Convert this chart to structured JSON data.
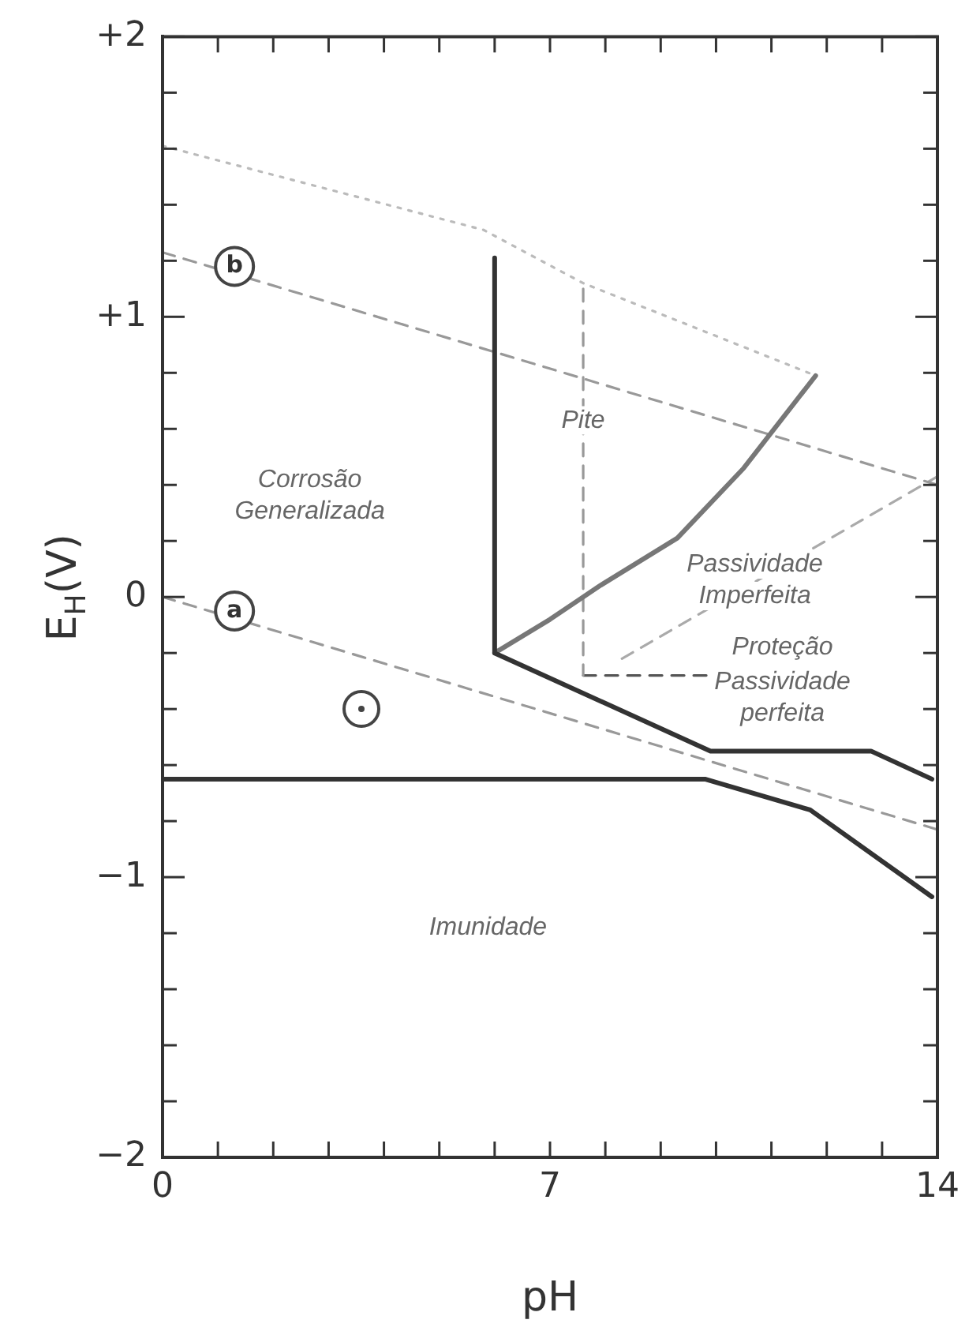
{
  "chart_data": {
    "type": "line",
    "xlabel": "pH",
    "ylabel": "E$_{H}$(V)",
    "xlim": [
      0,
      14
    ],
    "ylim": [
      -2,
      2
    ],
    "xticks": [
      0,
      {
        "value": 1,
        "label": null
      },
      {
        "value": 2,
        "label": null
      },
      {
        "value": 3,
        "label": null
      },
      {
        "value": 4,
        "label": null
      },
      {
        "value": 5,
        "label": null
      },
      {
        "value": 6,
        "label": null
      },
      7,
      {
        "value": 8,
        "label": null
      },
      {
        "value": 9,
        "label": null
      },
      {
        "value": 10,
        "label": null
      },
      {
        "value": 11,
        "label": null
      },
      {
        "value": 12,
        "label": null
      },
      {
        "value": 13,
        "label": null
      },
      14
    ],
    "yticks": [
      {
        "value": -2,
        "label": "−2"
      },
      {
        "value": -1.8,
        "label": null
      },
      {
        "value": -1.6,
        "label": null
      },
      {
        "value": -1.4,
        "label": null
      },
      {
        "value": -1.2,
        "label": null
      },
      {
        "value": -1,
        "label": "−1"
      },
      {
        "value": -0.8,
        "label": null
      },
      {
        "value": -0.6,
        "label": null
      },
      {
        "value": -0.4,
        "label": null
      },
      {
        "value": -0.2,
        "label": null
      },
      0,
      {
        "value": 0.2,
        "label": null
      },
      {
        "value": 0.4,
        "label": null
      },
      {
        "value": 0.6,
        "label": null
      },
      {
        "value": 0.8,
        "label": null
      },
      {
        "value": 1,
        "label": "+1"
      },
      {
        "value": 1.2,
        "label": null
      },
      {
        "value": 1.4,
        "label": null
      },
      {
        "value": 1.6,
        "label": null
      },
      {
        "value": 1.8,
        "label": null
      },
      {
        "value": 2,
        "label": "+2"
      }
    ],
    "grid": false,
    "legend": false,
    "marker": "none",
    "series": [
      {
        "x": [
          0,
          9.8,
          11.7,
          13.9
        ],
        "values": [
          -0.65,
          -0.65,
          -0.76,
          -1.07
        ],
        "color": "#333333",
        "line_style": "solid"
      },
      {
        "x": [
          6.0,
          6.0,
          9.9,
          12.8,
          13.9
        ],
        "values": [
          1.21,
          -0.2,
          -0.55,
          -0.55,
          -0.65
        ],
        "color": "#333333",
        "line_style": "solid"
      },
      {
        "x": [
          6.0,
          7.0,
          7.9,
          9.3,
          10.5,
          11.8
        ],
        "values": [
          -0.2,
          -0.08,
          0.04,
          0.21,
          0.46,
          0.79
        ],
        "color": "#777777",
        "line_style": "solid"
      },
      {
        "x": [
          0,
          14
        ],
        "values": [
          1.23,
          0.4
        ],
        "color": "#999999",
        "line_style": "dashed"
      },
      {
        "x": [
          0,
          14
        ],
        "values": [
          0,
          -0.83
        ],
        "color": "#999999",
        "line_style": "dashed"
      },
      {
        "x": [
          7.6,
          7.6
        ],
        "values": [
          1.1,
          -0.28
        ],
        "color": "#999999",
        "line_style": "dashed"
      },
      {
        "x": [
          7.6,
          9.9
        ],
        "values": [
          -0.28,
          -0.28
        ],
        "color": "#555555",
        "line_style": "dashed"
      },
      {
        "x": [
          8.3,
          14
        ],
        "values": [
          -0.22,
          0.43
        ],
        "color": "#aaaaaa",
        "line_style": "dashed"
      },
      {
        "x": [
          0,
          5.8,
          7.6,
          11.8
        ],
        "values": [
          1.61,
          1.31,
          1.12,
          0.79
        ],
        "color": "#bbbbbb",
        "line_style": "dotted"
      }
    ],
    "annotations": [
      {
        "text": "b",
        "x": 1.3,
        "y": 1.18
      },
      {
        "text": "a",
        "x": 1.3,
        "y": -0.05
      },
      "Corrosão\nGeneralizada",
      {
        "text": "Pite",
        "x": 7.6,
        "y": 0.63
      },
      {
        "text": "Passividade\nImperfeita",
        "x": 10.7,
        "y": 0.06
      },
      "Proteção",
      "Passividade\nperfeita",
      "Imunidade"
    ]
  }
}
